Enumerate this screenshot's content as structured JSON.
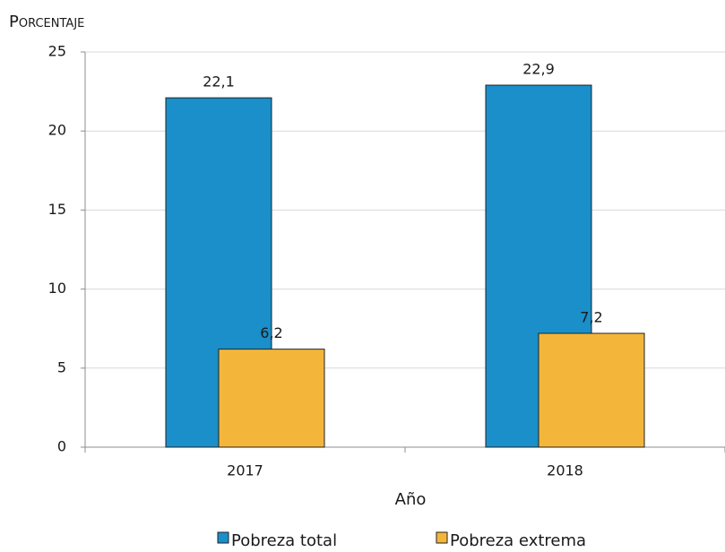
{
  "chart_data": {
    "type": "bar",
    "y_label": "Porcentaje",
    "x_label": "Año",
    "categories": [
      "2017",
      "2018"
    ],
    "series": [
      {
        "name": "Pobreza total",
        "color": "#1a8fc9",
        "values": [
          22.1,
          22.9
        ],
        "value_labels": [
          "22,1",
          "22,9"
        ]
      },
      {
        "name": "Pobreza extrema",
        "color": "#f4b63a",
        "values": [
          6.2,
          7.2
        ],
        "value_labels": [
          "6,2",
          "7,2"
        ]
      }
    ],
    "ylim": [
      0,
      25
    ],
    "yticks": [
      0,
      5,
      10,
      15,
      20,
      25
    ],
    "grid": true,
    "legend": "bottom"
  }
}
